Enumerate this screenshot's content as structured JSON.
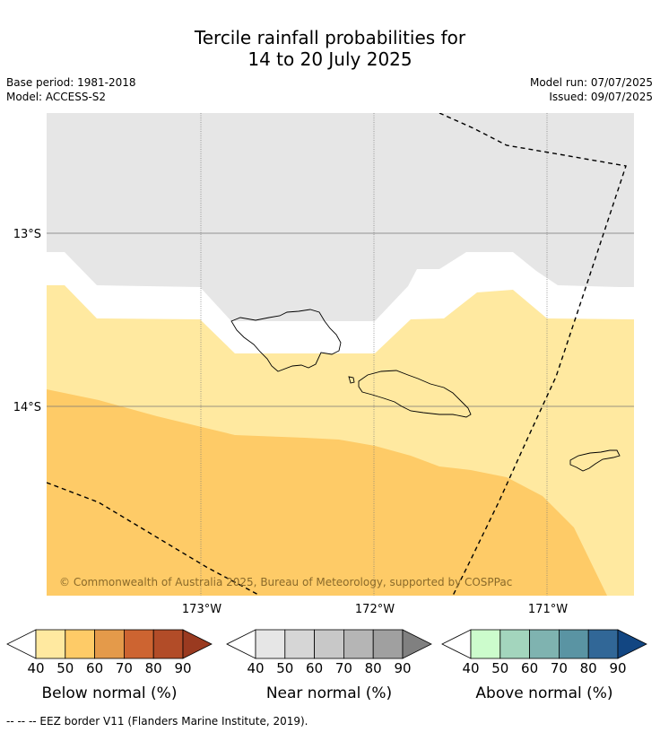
{
  "title": {
    "line1": "Tercile rainfall probabilities for",
    "line2": "14 to 20 July 2025"
  },
  "meta": {
    "base_period": "Base period: 1981-2018",
    "model": "Model: ACCESS-S2",
    "model_run": "Model run: 07/07/2025",
    "issued": "Issued: 09/07/2025"
  },
  "map": {
    "lat_labels": [
      "13°S",
      "14°S"
    ],
    "lon_labels": [
      "173°W",
      "172°W",
      "171°W"
    ],
    "copyright": "© Commonwealth of Australia 2025, Bureau of Meteorology, supported by COSPPac",
    "colors": {
      "near_normal_40": "#e6e6e6",
      "below_normal_40": "#ffe9a0",
      "below_normal_50": "#fecb67",
      "land_outline": "#000000",
      "eez_border": "#000000"
    }
  },
  "colorbars": [
    {
      "title": "Below normal (%)",
      "ticks": [
        "40",
        "50",
        "60",
        "70",
        "80",
        "90"
      ],
      "colors": [
        "#ffe9a0",
        "#fecb67",
        "#e49a4a",
        "#cd6431",
        "#b24c28",
        "#9a3a20"
      ],
      "low_end": "#ffffff"
    },
    {
      "title": "Near normal (%)",
      "ticks": [
        "40",
        "50",
        "60",
        "70",
        "80",
        "90"
      ],
      "colors": [
        "#e6e6e6",
        "#d6d6d6",
        "#c8c8c8",
        "#b5b5b5",
        "#a0a0a0",
        "#808080"
      ],
      "low_end": "#ffffff"
    },
    {
      "title": "Above normal (%)",
      "ticks": [
        "40",
        "50",
        "60",
        "70",
        "80",
        "90"
      ],
      "colors": [
        "#ccfccc",
        "#a3d5bd",
        "#7fb3b0",
        "#5a94a3",
        "#316797",
        "#124682"
      ],
      "low_end": "#ffffff"
    }
  ],
  "footnote": "--  --  -- EEZ border V11 (Flanders Marine Institute, 2019)."
}
